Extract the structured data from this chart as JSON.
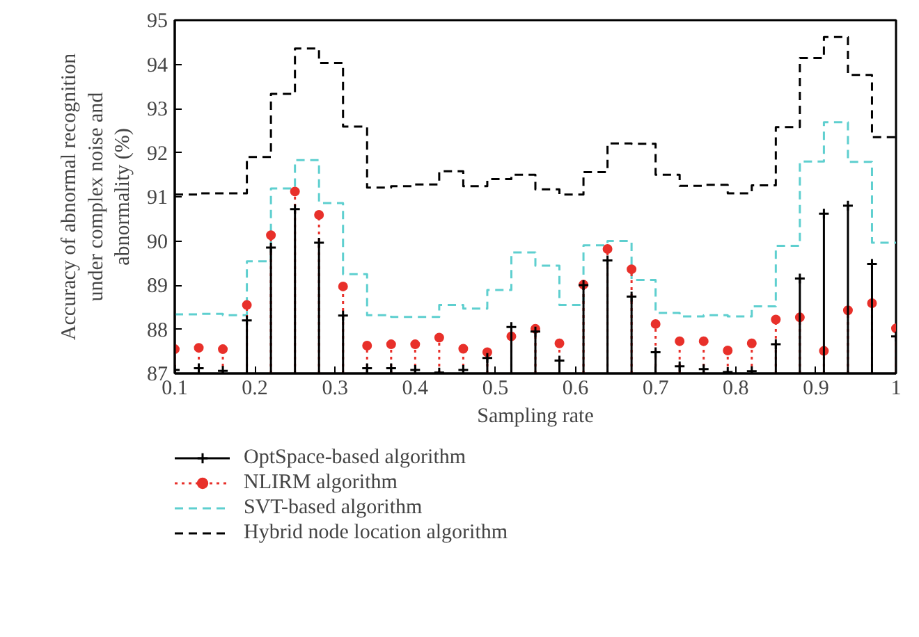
{
  "chart_data": {
    "type": "lollipop",
    "xlabel": "Sampling rate",
    "ylabel": "Accuracy of abnormal recognition under complex noise and abnormality (%)",
    "x": [
      0.1,
      0.13,
      0.16,
      0.19,
      0.22,
      0.25,
      0.28,
      0.31,
      0.34,
      0.37,
      0.4,
      0.43,
      0.46,
      0.49,
      0.52,
      0.55,
      0.58,
      0.61,
      0.64,
      0.67,
      0.7,
      0.73,
      0.76,
      0.79,
      0.82,
      0.85,
      0.88,
      0.91,
      0.94,
      0.97,
      1.0
    ],
    "series": [
      {
        "name": "OptSpace-based algorithm",
        "color": "#000000",
        "marker": "cross",
        "line_style": "solid",
        "values": [
          87.08,
          87.12,
          87.06,
          88.2,
          89.85,
          90.72,
          89.96,
          88.31,
          87.12,
          87.12,
          87.08,
          87.02,
          87.08,
          87.35,
          88.05,
          87.95,
          87.29,
          89.0,
          89.56,
          88.74,
          87.48,
          87.16,
          87.1,
          87.03,
          87.05,
          87.66,
          89.15,
          90.62,
          90.8,
          89.48,
          87.84
        ]
      },
      {
        "name": "NLIRM algorithm",
        "color": "#e8302a",
        "marker": "circle",
        "line_style": "dotted",
        "values": [
          87.55,
          87.58,
          87.55,
          88.55,
          90.13,
          91.12,
          90.59,
          88.97,
          87.63,
          87.66,
          87.66,
          87.81,
          87.56,
          87.48,
          87.84,
          88.01,
          87.68,
          89.01,
          89.82,
          89.36,
          88.12,
          87.73,
          87.73,
          87.52,
          87.68,
          88.22,
          88.27,
          87.51,
          88.43,
          88.59,
          88.02
        ]
      },
      {
        "name": "SVT-based algorithm",
        "type": "step",
        "color": "#5ecfcf",
        "line_style": "dashed",
        "values": [
          88.34,
          88.35,
          88.32,
          89.54,
          91.19,
          91.83,
          90.86,
          89.25,
          88.32,
          88.28,
          88.28,
          88.55,
          88.47,
          88.89,
          89.74,
          89.44,
          88.55,
          89.9,
          90.0,
          89.12,
          88.37,
          88.29,
          88.32,
          88.29,
          88.52,
          89.89,
          91.8,
          92.69,
          91.79,
          89.96,
          89.96
        ]
      },
      {
        "name": "Hybrid node location algorithm",
        "type": "step",
        "color": "#000000",
        "line_style": "dashed",
        "values": [
          91.05,
          91.08,
          91.08,
          91.9,
          93.33,
          94.36,
          94.03,
          92.59,
          91.21,
          91.24,
          91.28,
          91.58,
          91.24,
          91.4,
          91.5,
          91.17,
          91.05,
          91.56,
          92.21,
          92.2,
          91.5,
          91.25,
          91.27,
          91.08,
          91.26,
          92.58,
          94.14,
          94.62,
          93.76,
          92.35,
          92.35
        ]
      }
    ],
    "xlim": [
      0.1,
      1.0
    ],
    "ylim": [
      87,
      95
    ],
    "xticks": [
      0.1,
      0.2,
      0.3,
      0.4,
      0.5,
      0.6,
      0.7,
      0.8,
      0.9,
      {
        "value": 1.0,
        "label": "1"
      }
    ],
    "yticks": [
      87,
      88,
      89,
      90,
      91,
      92,
      93,
      94,
      95
    ],
    "grid": false,
    "legend": "bottom"
  }
}
